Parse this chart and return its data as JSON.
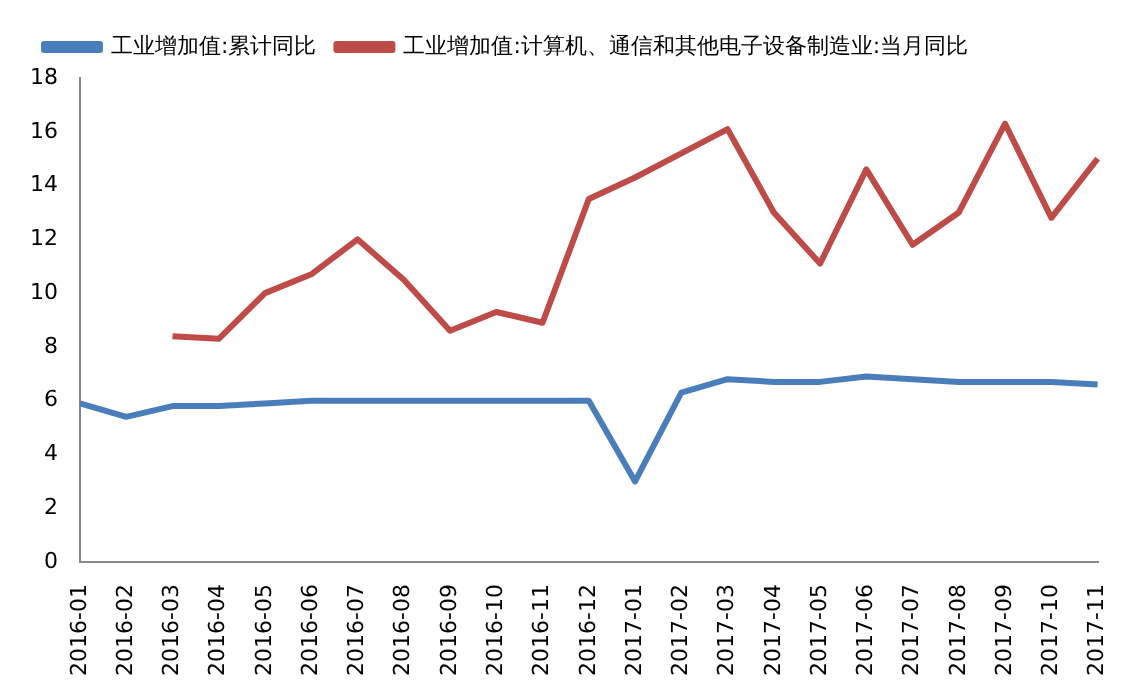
{
  "chart_data": {
    "type": "line",
    "categories": [
      "2016-01",
      "2016-02",
      "2016-03",
      "2016-04",
      "2016-05",
      "2016-06",
      "2016-07",
      "2016-08",
      "2016-09",
      "2016-10",
      "2016-11",
      "2016-12",
      "2017-01",
      "2017-02",
      "2017-03",
      "2017-04",
      "2017-05",
      "2017-06",
      "2017-07",
      "2017-08",
      "2017-09",
      "2017-10",
      "2017-11"
    ],
    "series": [
      {
        "name": "工业增加值:累计同比",
        "color": "#4a7ebb",
        "values": [
          5.9,
          5.4,
          5.8,
          5.8,
          5.9,
          6.0,
          6.0,
          6.0,
          6.0,
          6.0,
          6.0,
          6.0,
          3.0,
          6.3,
          6.8,
          6.7,
          6.7,
          6.9,
          6.8,
          6.7,
          6.7,
          6.7,
          6.6
        ]
      },
      {
        "name": "工业增加值:计算机、通信和其他电子设备制造业:当月同比",
        "color": "#be4b48",
        "values": [
          null,
          null,
          8.4,
          8.3,
          10.0,
          10.7,
          12.0,
          10.5,
          8.6,
          9.3,
          8.9,
          13.5,
          14.3,
          15.2,
          16.1,
          13.0,
          11.1,
          14.6,
          11.8,
          13.0,
          16.3,
          12.8,
          15.0
        ]
      }
    ],
    "ylim": [
      0,
      18
    ],
    "yticks": [
      0,
      2,
      4,
      6,
      8,
      10,
      12,
      14,
      16,
      18
    ],
    "grid": false,
    "legend": "top left",
    "marker": "none",
    "line_style": "solid"
  }
}
